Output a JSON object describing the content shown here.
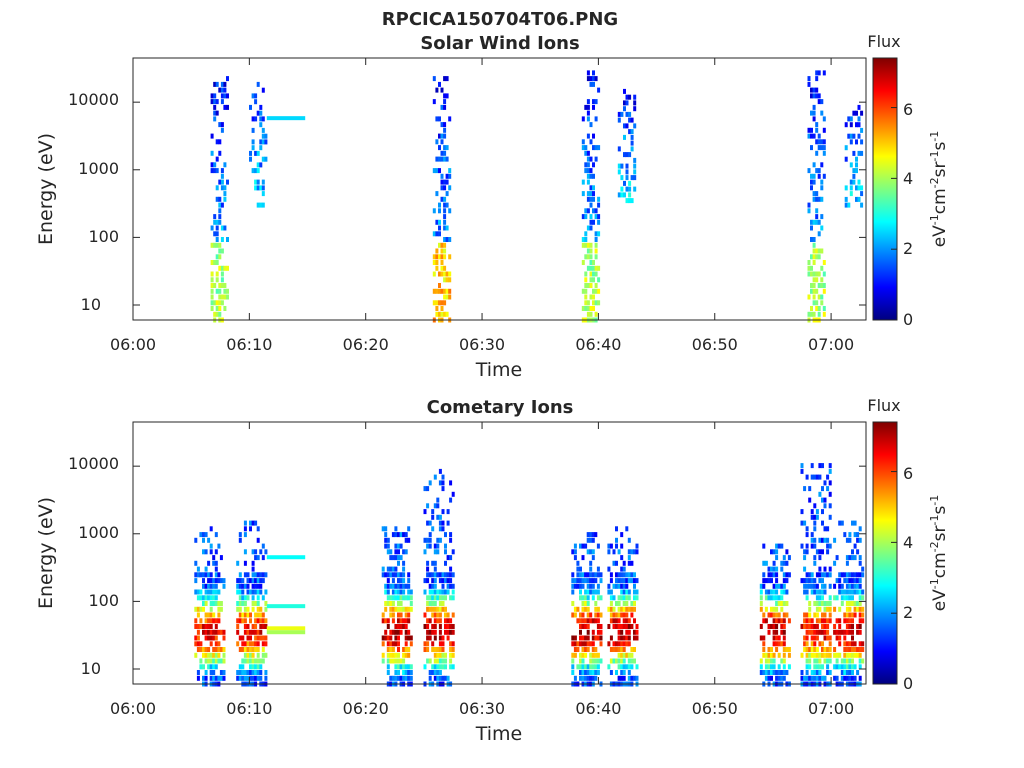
{
  "figure_title": "RPCICA150704T06.PNG",
  "colormap": [
    "#00007f",
    "#0000ff",
    "#007fff",
    "#00ffff",
    "#7fff7f",
    "#ffff00",
    "#ff7f00",
    "#ff0000",
    "#7f0000"
  ],
  "chart_data": [
    {
      "type": "heatmap",
      "title": "Solar Wind Ions",
      "xlabel": "Time",
      "ylabel": "Energy (eV)",
      "x_ticks": [
        "06:00",
        "06:10",
        "06:20",
        "06:30",
        "06:40",
        "06:50",
        "07:00"
      ],
      "xlim_minutes": [
        0,
        63
      ],
      "y_scale": "log",
      "ylim": [
        6,
        45000
      ],
      "y_ticks": [
        "10",
        "100",
        "1000",
        "10000"
      ],
      "colorbar": {
        "title": "Flux",
        "label": "eV-1cm-2sr-1s-1",
        "range": [
          0,
          7.4
        ],
        "ticks": [
          "0",
          "2",
          "4",
          "6"
        ]
      },
      "bursts": [
        {
          "center_minute": 7.5,
          "e_min": 6,
          "e_max": 27000,
          "peak_flux": 4
        },
        {
          "center_minute": 10.8,
          "e_min": 300,
          "e_max": 20000,
          "peak_flux": 3
        },
        {
          "center_minute": 26.6,
          "e_min": 6,
          "e_max": 25000,
          "peak_flux": 5
        },
        {
          "center_minute": 39.4,
          "e_min": 6,
          "e_max": 32000,
          "peak_flux": 4
        },
        {
          "center_minute": 42.5,
          "e_min": 350,
          "e_max": 17000,
          "peak_flux": 3
        },
        {
          "center_minute": 58.8,
          "e_min": 6,
          "e_max": 37000,
          "peak_flux": 4
        },
        {
          "center_minute": 62,
          "e_min": 300,
          "e_max": 10000,
          "peak_flux": 3
        }
      ],
      "lines": [
        {
          "t_start": 11.5,
          "t_end": 14.8,
          "energy": 5800,
          "flux": 2.5
        }
      ]
    },
    {
      "type": "heatmap",
      "title": "Cometary Ions",
      "xlabel": "Time",
      "ylabel": "Energy (eV)",
      "x_ticks": [
        "06:00",
        "06:10",
        "06:20",
        "06:30",
        "06:40",
        "06:50",
        "07:00"
      ],
      "xlim_minutes": [
        0,
        63
      ],
      "y_scale": "log",
      "ylim": [
        6,
        45000
      ],
      "y_ticks": [
        "10",
        "100",
        "1000",
        "10000"
      ],
      "colorbar": {
        "title": "Flux",
        "label": "eV-1cm-2sr-1s-1",
        "range": [
          0,
          7.4
        ],
        "ticks": [
          "0",
          "2",
          "4",
          "6"
        ]
      },
      "bursts": [
        {
          "center_minute": 6.7,
          "e_min": 6,
          "e_max": 1300,
          "peak_flux": 6.5
        },
        {
          "center_minute": 10.3,
          "e_min": 6,
          "e_max": 1700,
          "peak_flux": 6.5
        },
        {
          "center_minute": 22.8,
          "e_min": 6,
          "e_max": 1200,
          "peak_flux": 7
        },
        {
          "center_minute": 26.4,
          "e_min": 6,
          "e_max": 8500,
          "peak_flux": 7
        },
        {
          "center_minute": 39.1,
          "e_min": 6,
          "e_max": 1000,
          "peak_flux": 7
        },
        {
          "center_minute": 42.2,
          "e_min": 6,
          "e_max": 1300,
          "peak_flux": 7
        },
        {
          "center_minute": 55.3,
          "e_min": 6,
          "e_max": 800,
          "peak_flux": 7
        },
        {
          "center_minute": 58.8,
          "e_min": 6,
          "e_max": 12000,
          "peak_flux": 6.5
        },
        {
          "center_minute": 61.6,
          "e_min": 6,
          "e_max": 1500,
          "peak_flux": 7
        }
      ],
      "lines": [
        {
          "t_start": 11.5,
          "t_end": 14.8,
          "energy": 450,
          "flux": 2.8
        },
        {
          "t_start": 11.5,
          "t_end": 14.8,
          "energy": 85,
          "flux": 3
        },
        {
          "t_start": 11.5,
          "t_end": 14.8,
          "energy": 40,
          "flux": 4.5
        },
        {
          "t_start": 11.5,
          "t_end": 14.8,
          "energy": 35,
          "flux": 4
        }
      ]
    }
  ]
}
